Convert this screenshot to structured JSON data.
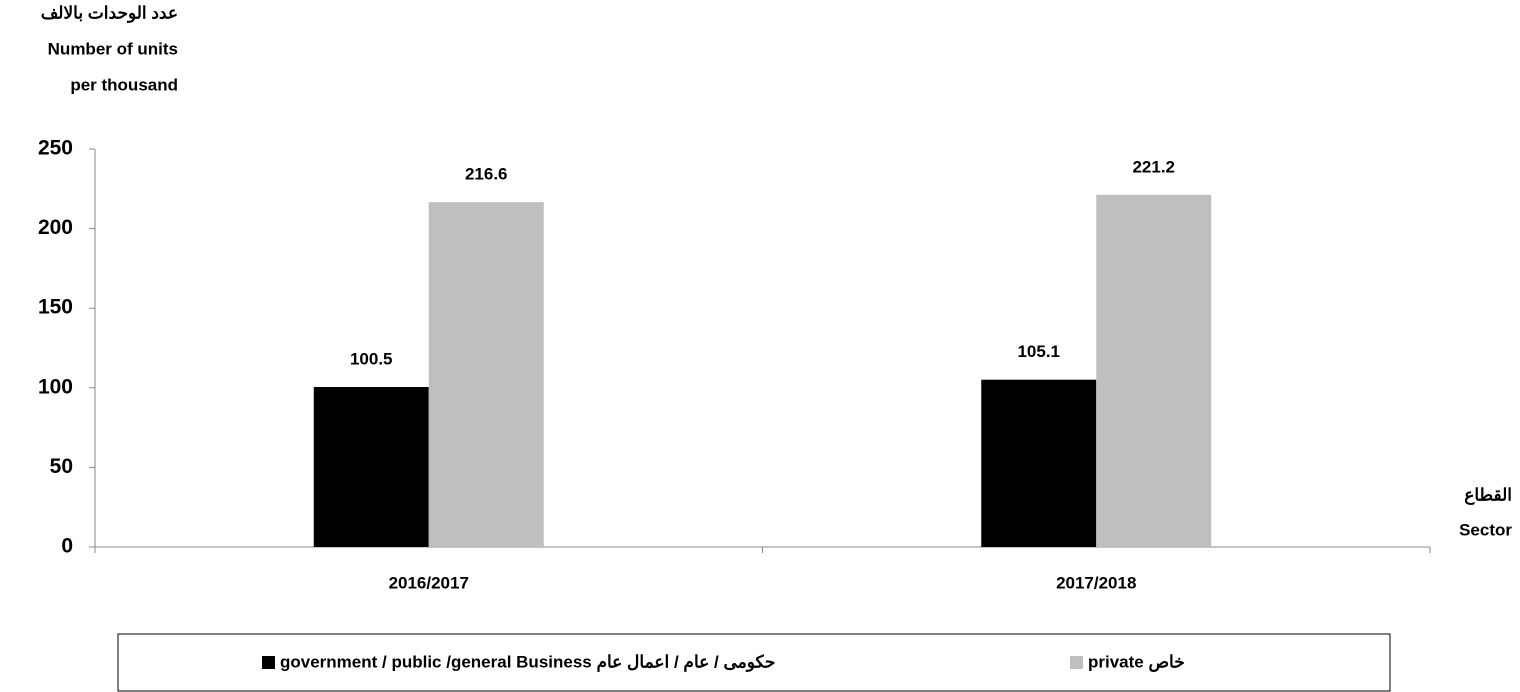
{
  "chart_data": {
    "type": "bar",
    "y_label": [
      "عدد الوحدات بالالف",
      "Number of units",
      "per thousand"
    ],
    "x_label": [
      "القطاع",
      "Sector"
    ],
    "categories": [
      "2016/2017",
      "2017/2018"
    ],
    "series": [
      {
        "name": "government / public /general Business حكومى / عام / اعمال عام",
        "color": "#000000",
        "values": [
          100.5,
          105.1
        ]
      },
      {
        "name": "private خاص",
        "color": "#bfbfbf",
        "values": [
          216.6,
          221.2
        ]
      }
    ],
    "ylim": [
      0,
      250
    ],
    "yticks": [
      0,
      50,
      100,
      150,
      200,
      250
    ],
    "grid": false,
    "legend": "bottom"
  }
}
